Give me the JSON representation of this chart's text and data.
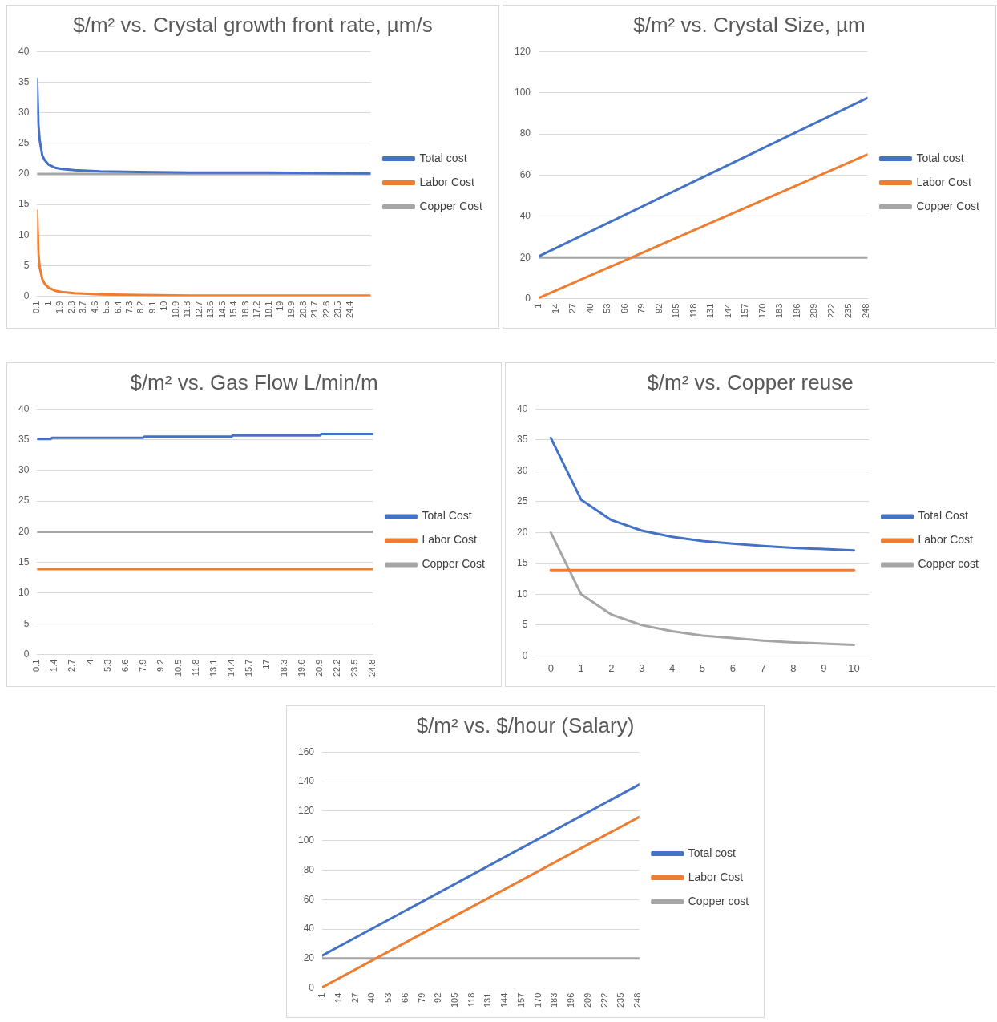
{
  "chart_data": [
    {
      "type": "line",
      "title": "$/m² vs. Crystal growth front rate, µm/s",
      "xlim": [
        0.1,
        26
      ],
      "xticks": [
        0.1,
        1,
        1.9,
        2.8,
        3.7,
        4.6,
        5.5,
        6.4,
        7.3,
        8.2,
        9.1,
        10,
        10.9,
        11.8,
        12.7,
        13.6,
        14.5,
        15.4,
        16.3,
        17.2,
        18.1,
        19,
        19.9,
        20.8,
        21.7,
        22.6,
        23.5,
        24.4
      ],
      "ylim": [
        0,
        40
      ],
      "yticks": [
        0,
        5,
        10,
        15,
        20,
        25,
        30,
        35,
        40
      ],
      "grid": "y",
      "legend": "right",
      "series": [
        {
          "name": "Total cost",
          "color": "#4472c4",
          "x": [
            0.1,
            0.2,
            0.3,
            0.5,
            0.7,
            1,
            1.5,
            2,
            3,
            5,
            8,
            12,
            18,
            26
          ],
          "values": [
            35.5,
            28,
            25.5,
            23,
            22.2,
            21.5,
            21,
            20.8,
            20.6,
            20.4,
            20.3,
            20.2,
            20.2,
            20.1
          ]
        },
        {
          "name": "Labor Cost",
          "color": "#ed7d31",
          "x": [
            0.1,
            0.2,
            0.3,
            0.5,
            0.7,
            1,
            1.5,
            2,
            3,
            5,
            8,
            12,
            18,
            26
          ],
          "values": [
            14,
            7,
            4.7,
            2.8,
            2,
            1.4,
            0.9,
            0.7,
            0.5,
            0.3,
            0.2,
            0.1,
            0.1,
            0.1
          ]
        },
        {
          "name": "Copper Cost",
          "color": "#a5a5a5",
          "x": [
            0.1,
            26
          ],
          "values": [
            20,
            20
          ]
        }
      ]
    },
    {
      "type": "line",
      "title": "$/m² vs. Crystal Size, µm",
      "xlim": [
        1,
        249
      ],
      "xticks": [
        1,
        14,
        27,
        40,
        53,
        66,
        79,
        92,
        105,
        118,
        131,
        144,
        157,
        170,
        183,
        196,
        209,
        222,
        235,
        248
      ],
      "ylim": [
        0,
        120
      ],
      "yticks": [
        0,
        20,
        40,
        60,
        80,
        100,
        120
      ],
      "grid": "y",
      "legend": "right",
      "series": [
        {
          "name": "Total cost",
          "color": "#4472c4",
          "x": [
            1,
            249
          ],
          "values": [
            20.5,
            97.5
          ]
        },
        {
          "name": "Labor Cost",
          "color": "#ed7d31",
          "x": [
            1,
            249
          ],
          "values": [
            0.3,
            70
          ]
        },
        {
          "name": "Copper Cost",
          "color": "#a5a5a5",
          "x": [
            1,
            249
          ],
          "values": [
            20,
            20
          ]
        }
      ]
    },
    {
      "type": "line",
      "title": "$/m² vs. Gas Flow  L/min/m",
      "xlim": [
        0.1,
        24.8
      ],
      "xticks": [
        0.1,
        1.4,
        2.7,
        4,
        5.3,
        6.6,
        7.9,
        9.2,
        10.5,
        11.8,
        13.1,
        14.4,
        15.7,
        17,
        18.3,
        19.6,
        20.9,
        22.2,
        23.5,
        24.8
      ],
      "ylim": [
        0,
        40
      ],
      "yticks": [
        0,
        5,
        10,
        15,
        20,
        25,
        30,
        35,
        40
      ],
      "grid": "y",
      "legend": "right",
      "series": [
        {
          "name": "Total Cost",
          "color": "#4472c4",
          "x": [
            0.1,
            1.1,
            1.2,
            7.9,
            8.0,
            14.4,
            14.5,
            20.9,
            21.0,
            24.8
          ],
          "values": [
            35.1,
            35.1,
            35.3,
            35.3,
            35.5,
            35.5,
            35.7,
            35.7,
            35.9,
            35.9
          ]
        },
        {
          "name": "Labor Cost",
          "color": "#ed7d31",
          "x": [
            0.1,
            24.8
          ],
          "values": [
            13.9,
            13.9
          ]
        },
        {
          "name": "Copper Cost",
          "color": "#a5a5a5",
          "x": [
            0.1,
            24.8
          ],
          "values": [
            20,
            20
          ]
        }
      ]
    },
    {
      "type": "line",
      "title": "$/m² vs. Copper reuse",
      "categories": [
        "0",
        "1",
        "2",
        "3",
        "4",
        "5",
        "6",
        "7",
        "8",
        "9",
        "10"
      ],
      "ylim": [
        0,
        40
      ],
      "yticks": [
        0,
        5,
        10,
        15,
        20,
        25,
        30,
        35,
        40
      ],
      "grid": "y",
      "legend": "right",
      "series": [
        {
          "name": "Total Cost",
          "color": "#4472c4",
          "values": [
            35.3,
            25.3,
            22,
            20.3,
            19.3,
            18.6,
            18.2,
            17.8,
            17.5,
            17.3,
            17.1
          ]
        },
        {
          "name": "Labor Cost",
          "color": "#ed7d31",
          "values": [
            13.9,
            13.9,
            13.9,
            13.9,
            13.9,
            13.9,
            13.9,
            13.9,
            13.9,
            13.9,
            13.9
          ]
        },
        {
          "name": "Copper cost",
          "color": "#a5a5a5",
          "values": [
            20,
            10,
            6.7,
            5,
            4,
            3.3,
            2.9,
            2.5,
            2.2,
            2,
            1.8
          ]
        }
      ]
    },
    {
      "type": "line",
      "title": "$/m² vs. $/hour (Salary)",
      "xlim": [
        1,
        249
      ],
      "xticks": [
        1,
        14,
        27,
        40,
        53,
        66,
        79,
        92,
        105,
        118,
        131,
        144,
        157,
        170,
        183,
        196,
        209,
        222,
        235,
        248
      ],
      "ylim": [
        0,
        160
      ],
      "yticks": [
        0,
        20,
        40,
        60,
        80,
        100,
        120,
        140,
        160
      ],
      "grid": "y",
      "legend": "right",
      "series": [
        {
          "name": "Total cost",
          "color": "#4472c4",
          "x": [
            1,
            249
          ],
          "values": [
            22,
            138
          ]
        },
        {
          "name": "Labor Cost",
          "color": "#ed7d31",
          "x": [
            1,
            249
          ],
          "values": [
            0.5,
            116
          ]
        },
        {
          "name": "Copper cost",
          "color": "#a5a5a5",
          "x": [
            1,
            249
          ],
          "values": [
            20,
            20
          ]
        }
      ]
    }
  ]
}
